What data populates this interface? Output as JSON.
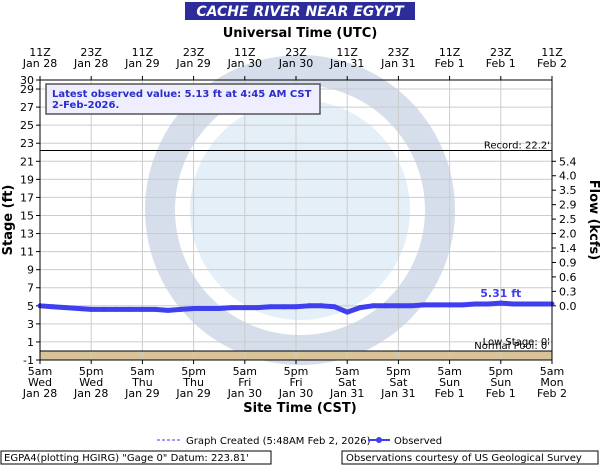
{
  "chart_data": {
    "type": "line",
    "title": "CACHE RIVER NEAR EGYPT",
    "top_axis_label": "Universal Time (UTC)",
    "xlabel": "Site Time (CST)",
    "ylabel": "Stage (ft)",
    "y2label": "Flow (kcfs)",
    "xlim": [
      0,
      120
    ],
    "xticks": [
      {
        "value": 0,
        "label": "5am\nWed\nJan 28"
      },
      {
        "value": 12,
        "label": "5pm\nWed\nJan 28"
      },
      {
        "value": 24,
        "label": "5am\nThu\nJan 29"
      },
      {
        "value": 36,
        "label": "5pm\nThu\nJan 29"
      },
      {
        "value": 48,
        "label": "5am\nFri\nJan 30"
      },
      {
        "value": 60,
        "label": "5pm\nFri\nJan 30"
      },
      {
        "value": 72,
        "label": "5am\nSat\nJan 31"
      },
      {
        "value": 84,
        "label": "5pm\nSat\nJan 31"
      },
      {
        "value": 96,
        "label": "5am\nSun\nFeb 1"
      },
      {
        "value": 108,
        "label": "5pm\nSun\nFeb 1"
      },
      {
        "value": 120,
        "label": "5am\nMon\nFeb 2"
      }
    ],
    "top_xticks": [
      {
        "value": 0,
        "label": "11Z\nJan 28"
      },
      {
        "value": 12,
        "label": "23Z\nJan 28"
      },
      {
        "value": 24,
        "label": "11Z\nJan 29"
      },
      {
        "value": 36,
        "label": "23Z\nJan 29"
      },
      {
        "value": 48,
        "label": "11Z\nJan 30"
      },
      {
        "value": 60,
        "label": "23Z\nJan 30"
      },
      {
        "value": 72,
        "label": "11Z\nJan 31"
      },
      {
        "value": 84,
        "label": "23Z\nJan 31"
      },
      {
        "value": 96,
        "label": "11Z\nFeb 1"
      },
      {
        "value": 108,
        "label": "23Z\nFeb 1"
      },
      {
        "value": 120,
        "label": "11Z\nFeb 2"
      }
    ],
    "ylim": [
      -1,
      30
    ],
    "yticks": [
      -1,
      1,
      3,
      5,
      7,
      9,
      11,
      13,
      15,
      17,
      19,
      21,
      23,
      25,
      27,
      29,
      30
    ],
    "y2ticks": [
      {
        "value": 5.4,
        "stage": 21
      },
      {
        "value": 4.0,
        "label": "4.0",
        "stage": 19.4
      },
      {
        "value": 3.5,
        "stage": 17.8
      },
      {
        "value": 2.9,
        "stage": 16.2
      },
      {
        "value": 2.5,
        "stage": 14.6
      },
      {
        "value": 2.0,
        "label": "2.0",
        "stage": 13
      },
      {
        "value": 1.4,
        "stage": 11.4
      },
      {
        "value": 0.9,
        "stage": 9.8
      },
      {
        "value": 0.6,
        "stage": 8.2
      },
      {
        "value": 0.3,
        "stage": 6.6
      },
      {
        "value": 0.0,
        "label": "0.0",
        "stage": 5
      }
    ],
    "grid": true,
    "record": {
      "value": 22.2,
      "label": "Record: 22.2'"
    },
    "low_stage": {
      "value": 0,
      "label": "Low Stage: 0'"
    },
    "normal_pool": {
      "value": 0,
      "label": "Normal Pool: 0'"
    },
    "latest_box": {
      "line1": "Latest observed value: 5.13 ft at 4:45 AM CST",
      "line2": "2-Feb-2026."
    },
    "peak_label": {
      "x": 108,
      "value": 5.31,
      "label": "5.31 ft"
    },
    "x": [
      0,
      3,
      6,
      9,
      12,
      15,
      18,
      21,
      24,
      27,
      30,
      33,
      36,
      39,
      42,
      45,
      48,
      51,
      54,
      57,
      60,
      63,
      66,
      69,
      72,
      75,
      78,
      81,
      84,
      87,
      90,
      93,
      96,
      99,
      102,
      105,
      108,
      111,
      114,
      117,
      120
    ],
    "series": [
      {
        "name": "Observed",
        "color": "#3f3ff0",
        "values": [
          5.0,
          4.9,
          4.8,
          4.7,
          4.6,
          4.6,
          4.6,
          4.6,
          4.6,
          4.6,
          4.5,
          4.6,
          4.7,
          4.7,
          4.7,
          4.8,
          4.8,
          4.8,
          4.9,
          4.9,
          4.9,
          5.0,
          5.0,
          4.9,
          4.3,
          4.8,
          5.0,
          5.0,
          5.0,
          5.0,
          5.1,
          5.1,
          5.1,
          5.1,
          5.2,
          5.2,
          5.3,
          5.2,
          5.2,
          5.2,
          5.2
        ]
      }
    ],
    "legend_created": "Graph Created (5:48AM Feb 2, 2026)",
    "footer_left": "EGPA4(plotting HGIRG) \"Gage 0\" Datum: 223.81'",
    "footer_right": "Observations courtesy of US Geological Survey"
  }
}
